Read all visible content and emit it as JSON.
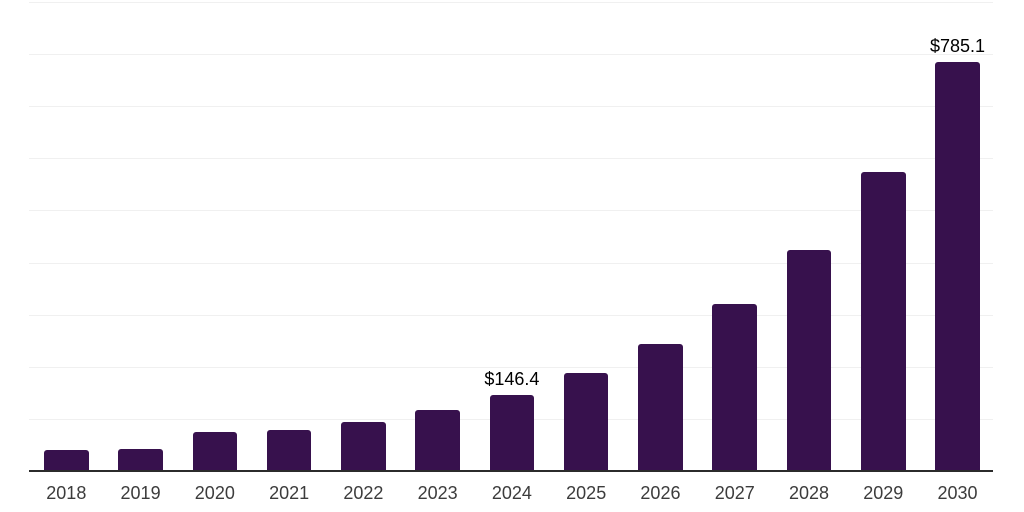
{
  "chart_data": {
    "type": "bar",
    "title": "",
    "xlabel": "",
    "ylabel": "",
    "categories": [
      "2018",
      "2019",
      "2020",
      "2021",
      "2022",
      "2023",
      "2024",
      "2025",
      "2026",
      "2027",
      "2028",
      "2029",
      "2030"
    ],
    "values": [
      40.3,
      41.5,
      75.2,
      78.3,
      93.5,
      117.2,
      146.4,
      187.7,
      242.9,
      319.8,
      425.0,
      573.1,
      785.1
    ],
    "value_labels": {
      "2024": "$146.4",
      "2030": "$785.1"
    },
    "ylim": [
      0,
      900
    ],
    "gridline_interval": 100,
    "grid": true,
    "legend": false,
    "bar_color": "#37114D",
    "grid_color": "#F0F0F0",
    "axis_color": "#2B2B2B",
    "value_label_color": "#000000",
    "tick_label_color": "#3C3C3C"
  }
}
